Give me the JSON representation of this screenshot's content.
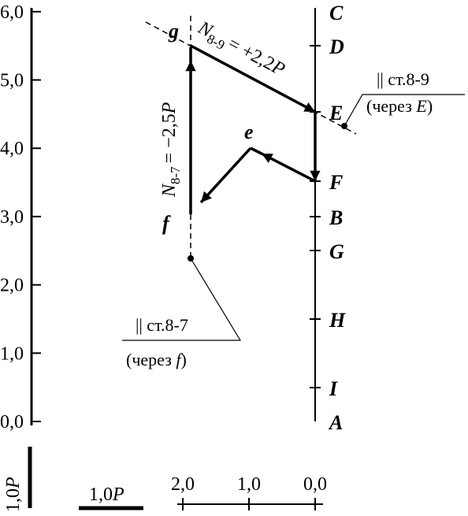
{
  "scale_axis": {
    "ticks": [
      "0,0",
      "1,0",
      "2,0",
      "3,0",
      "4,0",
      "5,0",
      "6,0"
    ]
  },
  "load_line": {
    "points": [
      "A",
      "I",
      "H",
      "G",
      "B",
      "F",
      "E",
      "D",
      "C"
    ]
  },
  "nodes": {
    "g": "g",
    "e": "e",
    "f": "f"
  },
  "force_8_9": {
    "symbol": "N",
    "index": "8-9",
    "value": "= +2,2",
    "unit": "P"
  },
  "force_8_7": {
    "symbol": "N",
    "index": "8-7",
    "value": "= −2,5",
    "unit": "P"
  },
  "note_8_9": {
    "line1": "|| ст.8-9",
    "line2_open": "(через ",
    "line2_point": "E",
    "line2_close": ")"
  },
  "note_8_7": {
    "line1": "|| ст.8-7",
    "line2_open": "(через ",
    "line2_point": "f",
    "line2_close": ")"
  },
  "scale_vertical": {
    "value": "1,0",
    "unit": "P"
  },
  "scale_horizontal": {
    "value": "1,0",
    "unit": "P"
  },
  "bottom_axis": {
    "ticks": [
      "2,0",
      "1,0",
      "0,0"
    ]
  }
}
